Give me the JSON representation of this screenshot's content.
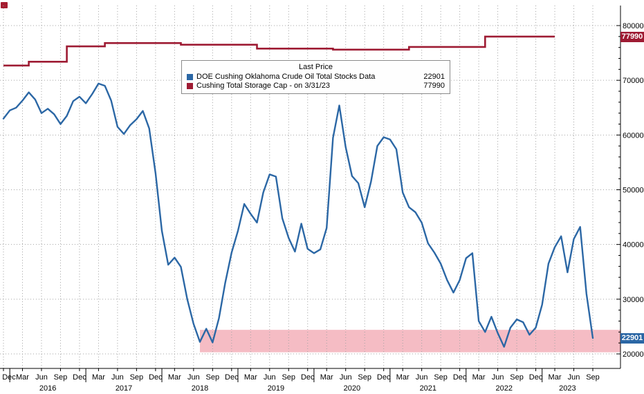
{
  "corner_icon": {
    "color": "#a51c30"
  },
  "legend": {
    "title": "Last Price",
    "items": [
      {
        "label": "DOE Cushing Oklahoma Crude Oil Total Stocks Data",
        "value": "22901",
        "color": "#2b67a5"
      },
      {
        "label": "Cushing Total Storage Cap -  on 3/31/23",
        "value": "77990",
        "color": "#9e1b33"
      }
    ]
  },
  "axis_badges": [
    {
      "value": "77990",
      "bg": "#9e1b33"
    },
    {
      "value": "22901",
      "bg": "#2b67a5"
    }
  ],
  "chart_data": {
    "type": "line",
    "x_unit": "month",
    "x_start_label": "Dec 2015",
    "x_end_label": "Sep 2023",
    "ylim": [
      17500,
      83500
    ],
    "grid": "dotted",
    "legend_position": "top-center",
    "y_ticks": [
      20000,
      30000,
      40000,
      50000,
      60000,
      70000,
      80000
    ],
    "x_quarter_labels": [
      "Dec",
      "Mar",
      "Jun",
      "Sep",
      "Dec",
      "Mar",
      "Jun",
      "Sep",
      "Dec",
      "Mar",
      "Jun",
      "Sep",
      "Dec",
      "Mar",
      "Jun",
      "Sep",
      "Dec",
      "Mar",
      "Jun",
      "Sep",
      "Dec",
      "Mar",
      "Jun",
      "Sep",
      "Dec",
      "Mar",
      "Jun",
      "Sep",
      "Dec",
      "Mar",
      "Jun",
      "Sep"
    ],
    "year_labels": [
      "2016",
      "2017",
      "2018",
      "2019",
      "2020",
      "2021",
      "2022",
      "2023"
    ],
    "series": [
      {
        "name": "DOE Cushing Oklahoma Crude Oil Total Stocks Data",
        "type": "line",
        "color": "#2b67a5",
        "last_value": 22901,
        "values": [
          63000,
          64500,
          65000,
          66300,
          67800,
          66500,
          64000,
          64800,
          63800,
          62000,
          63500,
          66200,
          67000,
          65800,
          67500,
          69400,
          69000,
          66300,
          61500,
          60200,
          61800,
          62900,
          64400,
          61200,
          53000,
          42500,
          36300,
          37600,
          35900,
          30000,
          25500,
          22200,
          24600,
          22100,
          26500,
          33000,
          38500,
          42500,
          47400,
          45600,
          44000,
          49500,
          52800,
          52400,
          44800,
          41200,
          38700,
          43800,
          39200,
          38400,
          39100,
          43000,
          59500,
          65400,
          57800,
          52500,
          51200,
          46800,
          51500,
          58000,
          59600,
          59200,
          57400,
          49500,
          46800,
          45900,
          44000,
          40200,
          38500,
          36500,
          33500,
          31200,
          33500,
          37500,
          38400,
          26000,
          24000,
          26800,
          23800,
          21300,
          24800,
          26300,
          25800,
          23500,
          24800,
          29000,
          36500,
          39500,
          41500,
          34900,
          41000,
          43200,
          31000,
          22901
        ]
      },
      {
        "name": "Cushing Total Storage Cap -  on 3/31/23",
        "type": "step",
        "color": "#9e1b33",
        "last_value": 77990,
        "points": [
          [
            0,
            72700
          ],
          [
            4,
            73400
          ],
          [
            10,
            76200
          ],
          [
            16,
            76800
          ],
          [
            28,
            76500
          ],
          [
            40,
            75800
          ],
          [
            52,
            75600
          ],
          [
            64,
            76100
          ],
          [
            76,
            77990
          ],
          [
            87,
            77990
          ]
        ]
      }
    ],
    "band": {
      "start_month_index": 31,
      "y_range": [
        20300,
        24400
      ],
      "color": "#f5bcc4"
    }
  }
}
